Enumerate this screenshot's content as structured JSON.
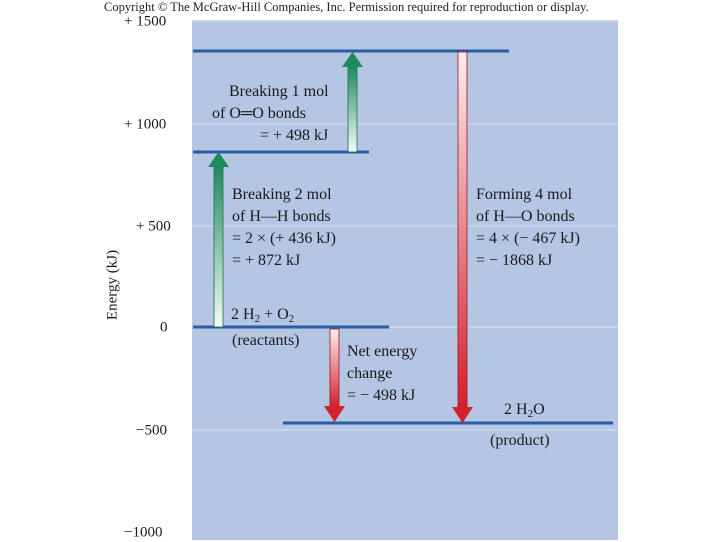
{
  "copyright": "Copyright © The McGraw-Hill Companies, Inc. Permission required for reproduction or display.",
  "yaxis": {
    "label": "Energy (kJ)",
    "ticks": [
      "+ 1500",
      "+ 1000",
      "+ 500",
      "0",
      "−500",
      "−1000"
    ]
  },
  "levels": {
    "reactants": {
      "energy": 0,
      "formula_prefix": "2 H",
      "formula_mid": " + O",
      "sub": "2",
      "label": "(reactants)"
    },
    "intermediate_h": {
      "energy": 872
    },
    "intermediate_atoms": {
      "energy": 1370
    },
    "product": {
      "energy": -498,
      "formula_prefix": "2 H",
      "sub": "2",
      "formula_suffix": "O",
      "label": "(product)"
    }
  },
  "annotations": {
    "break_oo": [
      "Breaking 1 mol",
      "of O═O bonds",
      "= + 498 kJ"
    ],
    "break_hh": [
      "Breaking 2 mol",
      "of H—H bonds",
      "= 2 × (+ 436 kJ)",
      "= + 872 kJ"
    ],
    "form_ho": [
      "Forming 4 mol",
      "of H—O bonds",
      "= 4 × (− 467 kJ)",
      "= − 1868 kJ"
    ],
    "net": [
      "Net energy",
      "change",
      "= − 498 kJ"
    ]
  },
  "colors": {
    "panel": "#b4c6e4",
    "level_line": "#2a5ea3",
    "green_arrow": "#1f8a5c",
    "red_arrow": "#d2202d"
  }
}
